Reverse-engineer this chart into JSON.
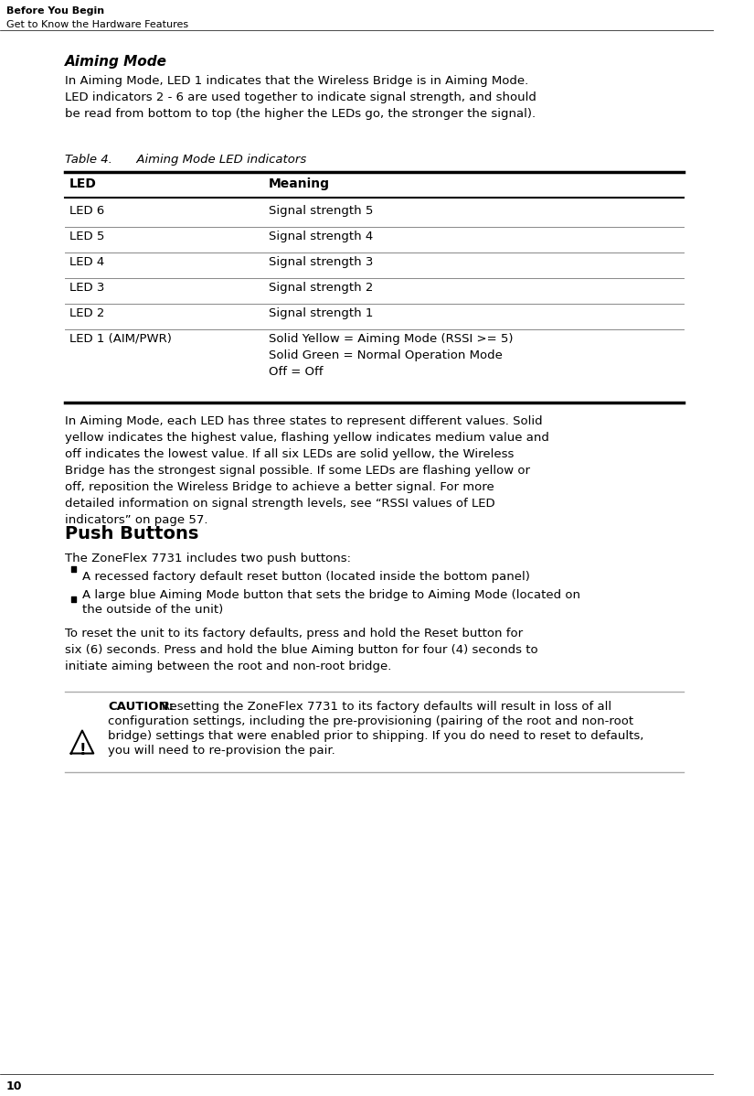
{
  "bg_color": "#ffffff",
  "header_line1": "Before You Begin",
  "header_line2": "Get to Know the Hardware Features",
  "section_title": "Aiming Mode",
  "intro_text": "In Aiming Mode, LED 1 indicates that the Wireless Bridge is in Aiming Mode. LED indicators 2 - 6 are used together to indicate signal strength, and should be read from bottom to top (the higher the LEDs go, the stronger the signal).",
  "table_caption": "Table 4.  Aiming Mode LED indicators",
  "table_headers": [
    "LED",
    "Meaning"
  ],
  "table_rows": [
    [
      "LED 6",
      "Signal strength 5"
    ],
    [
      "LED 5",
      "Signal strength 4"
    ],
    [
      "LED 4",
      "Signal strength 3"
    ],
    [
      "LED 3",
      "Signal strength 2"
    ],
    [
      "LED 2",
      "Signal strength 1"
    ],
    [
      "LED 1 (AIM/PWR)",
      "Solid Yellow = Aiming Mode (RSSI >= 5)\nSolid Green = Normal Operation Mode\nOff = Off"
    ]
  ],
  "body_text1": "In Aiming Mode, each LED has three states to represent different values. Solid yellow indicates the highest value, flashing yellow indicates medium value and off indicates the lowest value. If all six LEDs are solid yellow, the Wireless Bridge has the strongest signal possible. If some LEDs are flashing yellow or off, reposition the Wireless Bridge to achieve a better signal. For more detailed information on signal strength levels, see “RSSI values of LED indicators” on page 57.",
  "link_text": "“RSSI values of LED indicators” on page 57",
  "push_buttons_title": "Push Buttons",
  "push_buttons_intro": "The ZoneFlex 7731 includes two push buttons:",
  "bullet1": "A recessed factory default reset button (located inside the bottom panel)",
  "bullet2": "A large blue Aiming Mode button that sets the bridge to Aiming Mode (located on\nthe outside of the unit)",
  "push_buttons_text": "To reset the unit to its factory defaults, press and hold the Reset button for six (6) seconds. Press and hold the blue Aiming button for four (4) seconds to initiate aiming between the root and non-root bridge.",
  "caution_label": "CAUTION:",
  "caution_text": "  Resetting the ZoneFlex 7731 to its factory defaults will result in loss of all configuration settings, including the pre-provisioning (pairing of the root and non-root bridge) settings that were enabled prior to shipping. If you do need to reset to defaults, you will need to re-provision the pair.",
  "page_number": "10",
  "font_family": "DejaVu Sans"
}
